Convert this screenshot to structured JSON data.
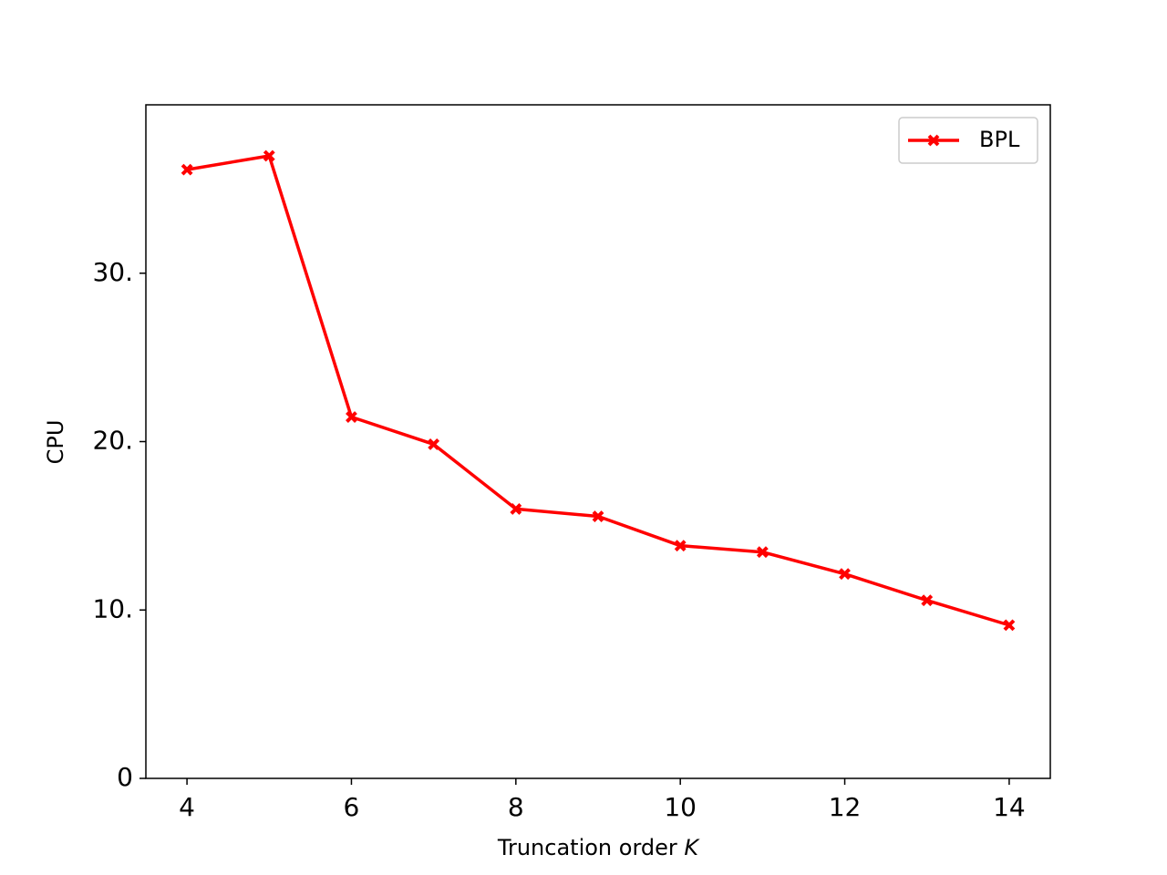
{
  "chart_data": {
    "type": "line",
    "xlabel": "Truncation order",
    "xlabel_var": "K",
    "ylabel": "CPU",
    "x": [
      4,
      5,
      6,
      7,
      8,
      9,
      10,
      11,
      12,
      13,
      14
    ],
    "series": [
      {
        "name": "BPL",
        "color": "#ff0000",
        "values": [
          36.15,
          36.97,
          21.46,
          19.84,
          16.0,
          15.56,
          13.82,
          13.44,
          12.14,
          10.57,
          9.1
        ]
      }
    ],
    "xlim": [
      3.5,
      14.5
    ],
    "xticks": [
      4,
      6,
      8,
      10,
      12,
      14
    ],
    "ylim": [
      0,
      40
    ],
    "yticks": [
      0,
      {
        "value": 10,
        "label": "10."
      },
      {
        "value": 20,
        "label": "20."
      },
      {
        "value": 30,
        "label": "30."
      }
    ],
    "grid": false,
    "legend": "upper right"
  }
}
